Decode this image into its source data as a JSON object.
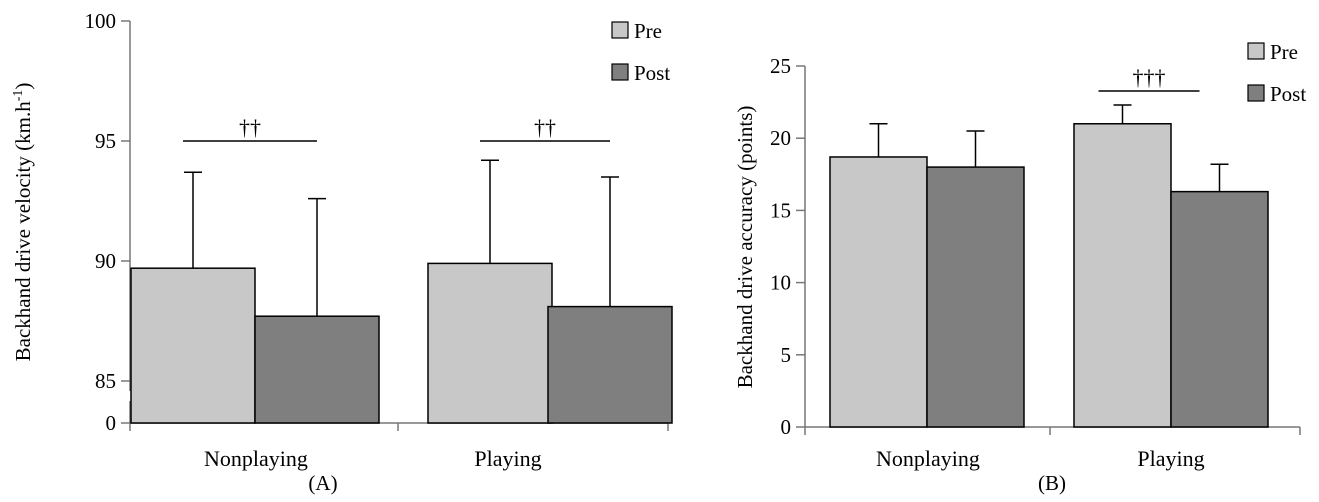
{
  "chart_data": [
    {
      "type": "bar",
      "panel_label": "(A)",
      "ylabel": "Backhand drive velocity (km.h-1)",
      "ylabel_main": "Backhand drive velocity (km.h",
      "ylabel_sup": "-1",
      "ylabel_close": ")",
      "categories": [
        "Nonplaying",
        "Playing"
      ],
      "ylim": [
        85,
        100
      ],
      "axis_break": true,
      "yticks": [
        {
          "value": 0,
          "label": "0"
        },
        {
          "value": 85,
          "label": "85"
        },
        {
          "value": 90,
          "label": "90"
        },
        {
          "value": 95,
          "label": "95"
        },
        {
          "value": 100,
          "label": "100"
        }
      ],
      "series": [
        {
          "name": "Pre",
          "color": "#c8c8c8",
          "values": [
            89.7,
            89.9
          ],
          "errors": [
            4.0,
            4.3
          ]
        },
        {
          "name": "Post",
          "color": "#7f7f7f",
          "values": [
            87.7,
            88.1
          ],
          "errors": [
            4.9,
            5.4
          ]
        }
      ],
      "significance": [
        {
          "category": 0,
          "label": "††",
          "y": 95.0
        },
        {
          "category": 1,
          "label": "††",
          "y": 95.0
        }
      ],
      "legend_position": "top-right",
      "grid": false
    },
    {
      "type": "bar",
      "panel_label": "(B)",
      "ylabel": "Backhand drive accuracy (points)",
      "categories": [
        "Nonplaying",
        "Playing"
      ],
      "ylim": [
        0,
        25
      ],
      "axis_break": false,
      "yticks": [
        {
          "value": 0,
          "label": "0"
        },
        {
          "value": 5,
          "label": "5"
        },
        {
          "value": 10,
          "label": "10"
        },
        {
          "value": 15,
          "label": "15"
        },
        {
          "value": 20,
          "label": "20"
        },
        {
          "value": 25,
          "label": "25"
        }
      ],
      "series": [
        {
          "name": "Pre",
          "color": "#c8c8c8",
          "values": [
            18.7,
            21.0
          ],
          "errors": [
            2.3,
            1.3
          ]
        },
        {
          "name": "Post",
          "color": "#7f7f7f",
          "values": [
            18.0,
            16.3
          ],
          "errors": [
            2.5,
            1.9
          ]
        }
      ],
      "significance": [
        {
          "category": 1,
          "label": "†††",
          "y": 25.0
        }
      ],
      "legend_position": "top-right",
      "grid": false
    }
  ]
}
